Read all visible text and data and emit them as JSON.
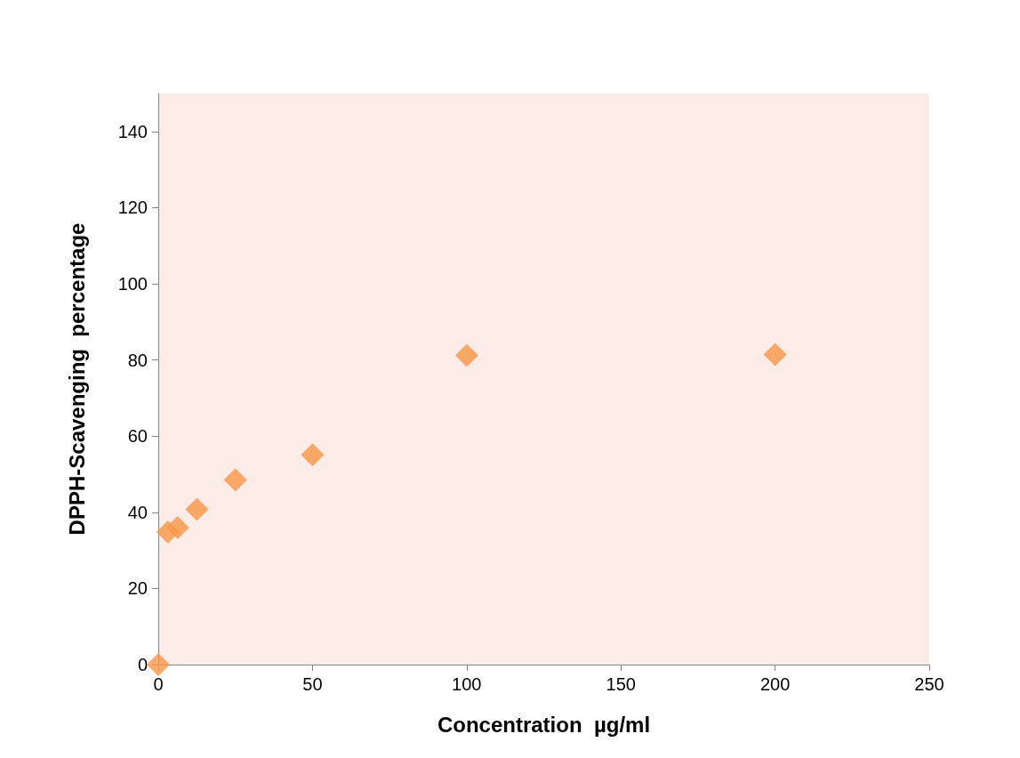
{
  "chart_data": {
    "type": "scatter",
    "xlabel": "Concentration  µg/ml",
    "ylabel": "DPPH-Scavenging  percentage",
    "x": [
      0,
      3.125,
      6.25,
      12.5,
      25,
      50,
      100,
      200
    ],
    "values": [
      0,
      34.8,
      36,
      40.8,
      48.5,
      55.1,
      81.2,
      81.4
    ],
    "color": "#f79646",
    "marker": "diamond",
    "grid": false,
    "xlim": [
      0,
      250
    ],
    "xticks": [
      0,
      50,
      100,
      150,
      200,
      250
    ],
    "ylim": [
      0,
      150
    ],
    "yticks": [
      0,
      20,
      40,
      60,
      80,
      100,
      120,
      140
    ]
  }
}
